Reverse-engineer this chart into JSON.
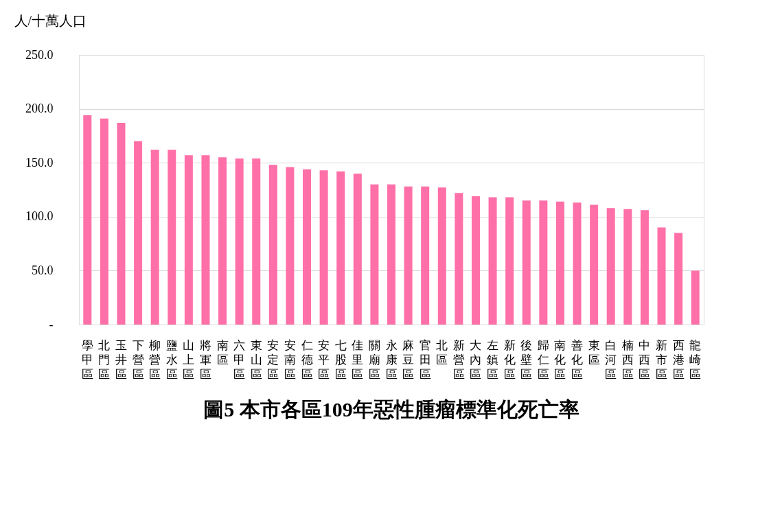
{
  "chart_data": {
    "type": "bar",
    "title": "圖5 本市各區109年惡性腫瘤標準化死亡率",
    "ylabel": "人/十萬人口",
    "categories": [
      "學甲區",
      "北門區",
      "玉井區",
      "下營區",
      "柳營區",
      "鹽水區",
      "山上區",
      "將軍區",
      "南區",
      "六甲區",
      "東山區",
      "安定區",
      "安南區",
      "仁德區",
      "安平區",
      "七股區",
      "佳里區",
      "關廟區",
      "永康區",
      "麻豆區",
      "官田區",
      "北區",
      "新營區",
      "大內區",
      "左鎮區",
      "新化區",
      "後壁區",
      "歸仁區",
      "南化區",
      "善化區",
      "東區",
      "白河區",
      "楠西區",
      "中西區",
      "新市區",
      "西港區",
      "龍崎區"
    ],
    "values": [
      194,
      191,
      187,
      170,
      162,
      162,
      157,
      157,
      155,
      154,
      154,
      148,
      146,
      144,
      143,
      142,
      140,
      130,
      130,
      128,
      128,
      127,
      122,
      119,
      118,
      118,
      115,
      115,
      114,
      113,
      111,
      108,
      107,
      106,
      90,
      85,
      50
    ],
    "color": "#ff6fa8",
    "ylim": [
      0,
      250
    ],
    "yticks": [
      {
        "value": 0,
        "label": "-"
      },
      {
        "value": 50,
        "label": "50.0"
      },
      {
        "value": 100,
        "label": "100.0"
      },
      {
        "value": 150,
        "label": "150.0"
      },
      {
        "value": 200,
        "label": "200.0"
      },
      {
        "value": 250,
        "label": "250.0"
      }
    ],
    "grid": "y"
  }
}
